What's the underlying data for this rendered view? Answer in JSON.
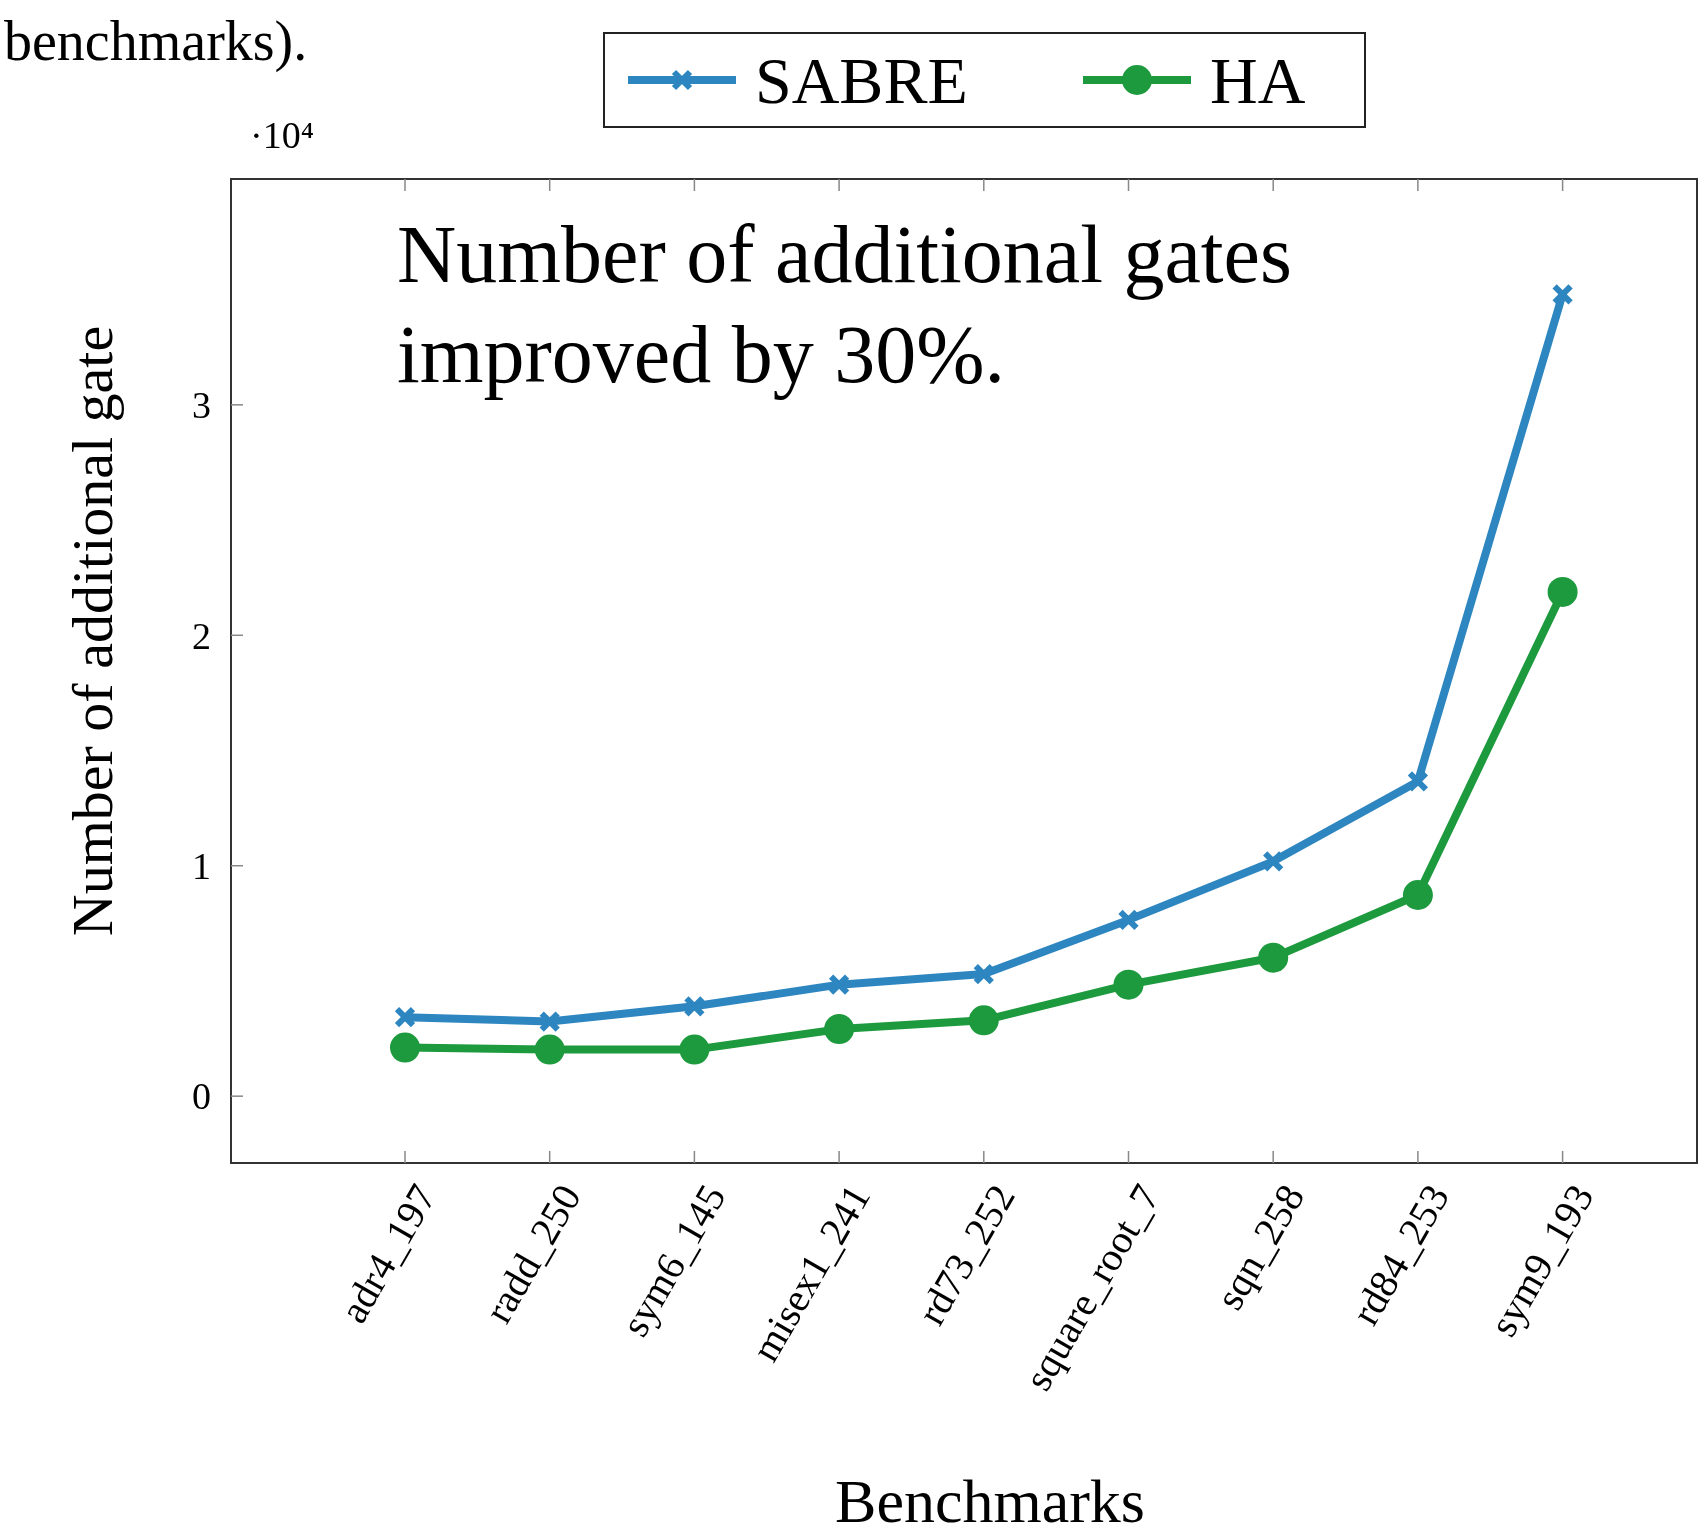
{
  "chart_data": {
    "type": "line",
    "xlabel": "Benchmarks",
    "ylabel": "Number of additional gate",
    "categories": [
      "adr4_197",
      "radd_250",
      "sym6_145",
      "misex1_241",
      "rd73_252",
      "square_root_7",
      "sqn_258",
      "rd84_253",
      "sym9_193"
    ],
    "series": [
      {
        "name": "SABRE",
        "color": "#2e86c1",
        "marker": "cross",
        "values": [
          0.343,
          0.324,
          0.39,
          0.484,
          0.53,
          0.765,
          1.019,
          1.366,
          3.479
        ]
      },
      {
        "name": "HA",
        "color": "#1e9a3e",
        "marker": "circle",
        "values": [
          0.211,
          0.202,
          0.202,
          0.291,
          0.329,
          0.484,
          0.601,
          0.873,
          2.188
        ]
      }
    ],
    "ylim": [
      -0.29,
      3.98
    ],
    "yticks": [
      0,
      1,
      2,
      3
    ],
    "grid": false,
    "legend": "top",
    "line_style": "solid",
    "annotations": [
      "Number of additional gates improved by 30%.",
      "·10⁴",
      "benchmarks)."
    ]
  }
}
